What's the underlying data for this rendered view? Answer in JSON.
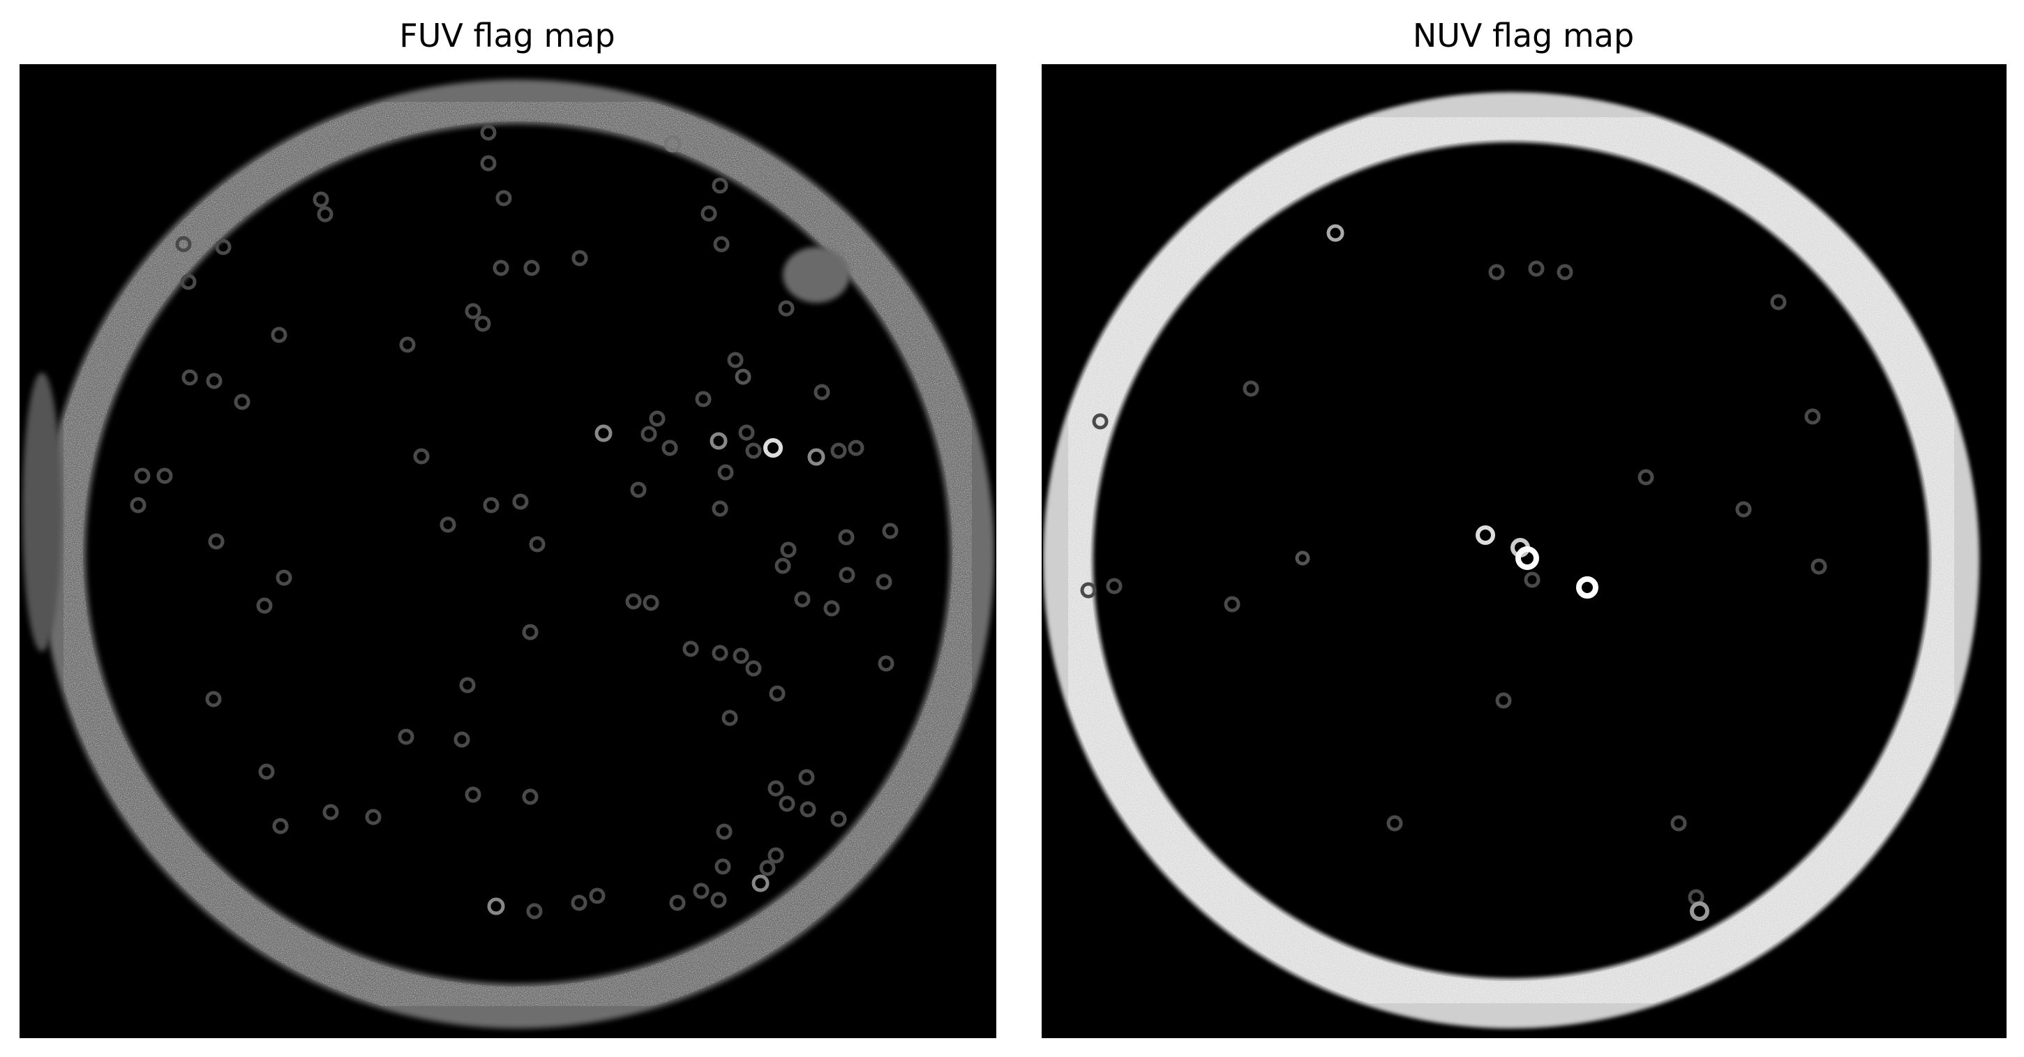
{
  "panels": {
    "fuv": {
      "title": "FUV flag map"
    },
    "nuv": {
      "title": "NUV flag map"
    }
  },
  "colors": {
    "background": "#000000",
    "fuv_ring": "#8a8a8a",
    "nuv_ring": "#e6e6e6",
    "spot": "#9a9a9a",
    "bright_spot": "#ffffff"
  }
}
